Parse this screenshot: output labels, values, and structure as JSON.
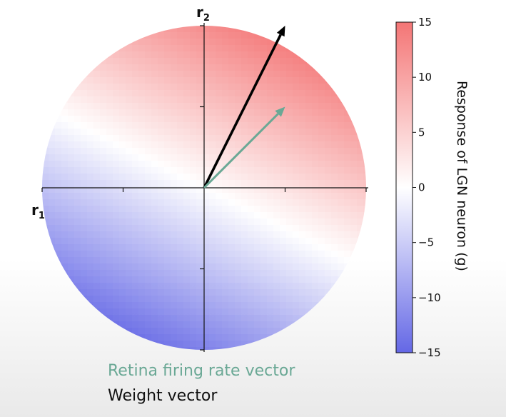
{
  "chart_data": {
    "type": "heatmap",
    "plot": "disc colored by LGN response g = w · r over the (r1, r2) plane, with two vectors drawn from the origin",
    "axes": {
      "x_label": "r",
      "x_label_sub": "1",
      "y_label": "r",
      "y_label_sub": "2",
      "range": [
        -1,
        1
      ]
    },
    "weight_vector": [
      0.5,
      1.0
    ],
    "vectors": [
      {
        "name": "Weight vector",
        "dx": 0.5,
        "dy": 1.0,
        "color": "#000000"
      },
      {
        "name": "Retina firing rate vector",
        "dx": 0.5,
        "dy": 0.5,
        "color": "#6aa895"
      }
    ],
    "colorbar": {
      "label": "Response of LGN neuron (g)",
      "min": -15,
      "max": 15,
      "ticks": [
        {
          "value": 15,
          "label": "15"
        },
        {
          "value": 10,
          "label": "10"
        },
        {
          "value": 5,
          "label": "5"
        },
        {
          "value": 0,
          "label": "0"
        },
        {
          "value": -5,
          "label": "−5"
        },
        {
          "value": -10,
          "label": "−10"
        },
        {
          "value": -15,
          "label": "−15"
        }
      ],
      "colormap": {
        "negative": "#4b4fe3",
        "zero": "#ffffff",
        "positive": "#f25d5d"
      }
    }
  },
  "legend": {
    "retina_label": "Retina firing rate vector",
    "retina_color": "#6aa895",
    "weight_label": "Weight vector",
    "weight_color": "#111111"
  }
}
